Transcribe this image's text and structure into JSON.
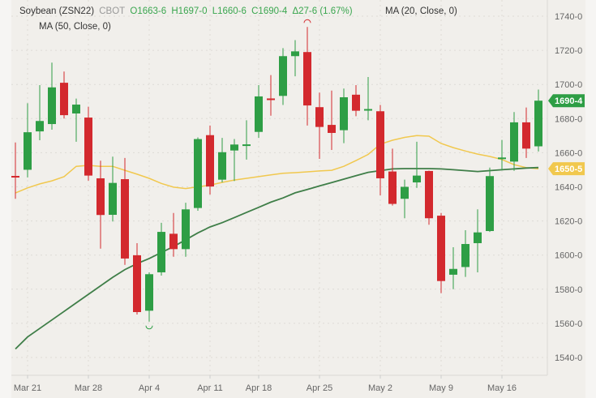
{
  "header": {
    "symbol": "Soybean (ZSN22)",
    "exchange": "CBOT",
    "open": "O1663-6",
    "high": "H1697-0",
    "low": "L1660-6",
    "close": "C1690-4",
    "change": "Δ27-6 (1.67%)",
    "ma20_label": "MA (20, Close, 0)",
    "ma50_label": "MA (50, Close, 0)"
  },
  "colors": {
    "up": "#2e9e45",
    "down": "#d3292e",
    "ma20": "#f1c84e",
    "ma50": "#3f7e48",
    "background": "#f1efeb"
  },
  "chart_data": {
    "type": "candlestick",
    "ylim": [
      1530,
      1750
    ],
    "y_ticks": [
      "1740-0",
      "1720-0",
      "1700-0",
      "1680-0",
      "1660-0",
      "1640-0",
      "1620-0",
      "1600-0",
      "1580-0",
      "1560-0",
      "1540-0"
    ],
    "y_tick_values": [
      1740,
      1720,
      1700,
      1680,
      1660,
      1640,
      1620,
      1600,
      1580,
      1560,
      1540
    ],
    "x_ticks": [
      {
        "label": "Mar 21",
        "date": "Mar 21"
      },
      {
        "label": "Mar 28",
        "date": "Mar 28"
      },
      {
        "label": "Apr 4",
        "date": "Apr 4"
      },
      {
        "label": "Apr 11",
        "date": "Apr 11"
      },
      {
        "label": "Apr 18",
        "date": "Apr 18"
      },
      {
        "label": "Apr 25",
        "date": "Apr 25"
      },
      {
        "label": "May 2",
        "date": "May 2"
      },
      {
        "label": "May 9",
        "date": "May 9"
      },
      {
        "label": "May 16",
        "date": "May 16"
      }
    ],
    "grid": true,
    "price_tags": [
      {
        "label": "1690-4",
        "value": 1690.5,
        "series": "close"
      },
      {
        "label": "1650-5",
        "value": 1650.6,
        "series": "MA (20, Close, 0)"
      }
    ],
    "candles": [
      {
        "date": "Mar 18",
        "o": 1646.4,
        "h": 1666,
        "l": 1633,
        "c": 1646.0
      },
      {
        "date": "Mar 21",
        "o": 1650,
        "h": 1689,
        "l": 1645.5,
        "c": 1672
      },
      {
        "date": "Mar 22",
        "o": 1672.5,
        "h": 1699.6,
        "l": 1667.3,
        "c": 1678.6
      },
      {
        "date": "Mar 23",
        "o": 1676.8,
        "h": 1712.8,
        "l": 1673.5,
        "c": 1698.3
      },
      {
        "date": "Mar 24",
        "o": 1701,
        "h": 1707.6,
        "l": 1680,
        "c": 1682
      },
      {
        "date": "Mar 25",
        "o": 1683,
        "h": 1691.7,
        "l": 1666.4,
        "c": 1688.2
      },
      {
        "date": "Mar 28",
        "o": 1680.6,
        "h": 1687,
        "l": 1643.6,
        "c": 1646.6
      },
      {
        "date": "Mar 29",
        "o": 1645,
        "h": 1655.3,
        "l": 1603.8,
        "c": 1623.5
      },
      {
        "date": "Mar 30",
        "o": 1623.6,
        "h": 1657.7,
        "l": 1619.7,
        "c": 1642.3
      },
      {
        "date": "Mar 31",
        "o": 1644.5,
        "h": 1656.9,
        "l": 1594.3,
        "c": 1598
      },
      {
        "date": "Apr 1",
        "o": 1599.9,
        "h": 1607,
        "l": 1565.2,
        "c": 1566.6
      },
      {
        "date": "Apr 4",
        "o": 1567.4,
        "h": 1589.9,
        "l": 1561,
        "c": 1588.8
      },
      {
        "date": "Apr 5",
        "o": 1589.9,
        "h": 1618.9,
        "l": 1588,
        "c": 1613.6
      },
      {
        "date": "Apr 6",
        "o": 1612.5,
        "h": 1624.7,
        "l": 1599,
        "c": 1603.5
      },
      {
        "date": "Apr 7",
        "o": 1603.5,
        "h": 1630.7,
        "l": 1599,
        "c": 1626.8
      },
      {
        "date": "Apr 8",
        "o": 1627.6,
        "h": 1669,
        "l": 1626,
        "c": 1668
      },
      {
        "date": "Apr 11",
        "o": 1670.3,
        "h": 1675.9,
        "l": 1635.5,
        "c": 1640.2
      },
      {
        "date": "Apr 12",
        "o": 1644.2,
        "h": 1668.7,
        "l": 1642.6,
        "c": 1660.3
      },
      {
        "date": "Apr 13",
        "o": 1661.3,
        "h": 1668,
        "l": 1643.4,
        "c": 1664.8
      },
      {
        "date": "Apr 14",
        "o": 1664.6,
        "h": 1679,
        "l": 1656,
        "c": 1664.9
      },
      {
        "date": "Apr 18",
        "o": 1672.2,
        "h": 1699.6,
        "l": 1668.7,
        "c": 1693
      },
      {
        "date": "Apr 19",
        "o": 1691.8,
        "h": 1705.5,
        "l": 1681.7,
        "c": 1691.6
      },
      {
        "date": "Apr 20",
        "o": 1693.3,
        "h": 1721.3,
        "l": 1688,
        "c": 1716.6
      },
      {
        "date": "Apr 21",
        "o": 1716.6,
        "h": 1726,
        "l": 1704.8,
        "c": 1719.4
      },
      {
        "date": "Apr 22",
        "o": 1719,
        "h": 1733.7,
        "l": 1675.9,
        "c": 1687.7
      },
      {
        "date": "Apr 25",
        "o": 1686.7,
        "h": 1695.2,
        "l": 1656.4,
        "c": 1675.1
      },
      {
        "date": "Apr 26",
        "o": 1676.3,
        "h": 1696.4,
        "l": 1661.6,
        "c": 1671.6
      },
      {
        "date": "Apr 27",
        "o": 1673.2,
        "h": 1697.6,
        "l": 1665.6,
        "c": 1692.5
      },
      {
        "date": "Apr 28",
        "o": 1694,
        "h": 1699.6,
        "l": 1681.4,
        "c": 1684.6
      },
      {
        "date": "Apr 29",
        "o": 1685.2,
        "h": 1704.4,
        "l": 1679,
        "c": 1685.6
      },
      {
        "date": "May 2",
        "o": 1684.3,
        "h": 1688,
        "l": 1635,
        "c": 1645
      },
      {
        "date": "May 3",
        "o": 1649,
        "h": 1662.4,
        "l": 1629,
        "c": 1630
      },
      {
        "date": "May 4",
        "o": 1633,
        "h": 1644.2,
        "l": 1621.6,
        "c": 1640
      },
      {
        "date": "May 5",
        "o": 1642.6,
        "h": 1666.4,
        "l": 1639.4,
        "c": 1646.6
      },
      {
        "date": "May 6",
        "o": 1649.3,
        "h": 1649.5,
        "l": 1617.8,
        "c": 1621.6
      },
      {
        "date": "May 9",
        "o": 1623.1,
        "h": 1624.7,
        "l": 1577.7,
        "c": 1584.8
      },
      {
        "date": "May 10",
        "o": 1588.5,
        "h": 1604.6,
        "l": 1580,
        "c": 1591.9
      },
      {
        "date": "May 11",
        "o": 1593,
        "h": 1614.6,
        "l": 1587.2,
        "c": 1606.5
      },
      {
        "date": "May 12",
        "o": 1607,
        "h": 1626.8,
        "l": 1589.9,
        "c": 1613.3
      },
      {
        "date": "May 13",
        "o": 1614.1,
        "h": 1651.3,
        "l": 1613.6,
        "c": 1646.3
      },
      {
        "date": "May 16",
        "o": 1656.6,
        "h": 1667.5,
        "l": 1649.7,
        "c": 1657.2
      },
      {
        "date": "May 17",
        "o": 1654.8,
        "h": 1683.8,
        "l": 1649.4,
        "c": 1677.8
      },
      {
        "date": "May 18",
        "o": 1677.8,
        "h": 1686.5,
        "l": 1656.9,
        "c": 1662.4
      },
      {
        "date": "May 19",
        "o": 1663.75,
        "h": 1697,
        "l": 1660.75,
        "c": 1690.5
      }
    ],
    "series": [
      {
        "name": "MA (20, Close, 0)",
        "color": "#f1c84e",
        "values": [
          1636.4,
          1639.4,
          1641.7,
          1643.5,
          1646,
          1652,
          1652.6,
          1652,
          1652,
          1649.7,
          1647.4,
          1645,
          1642,
          1639.8,
          1639,
          1640,
          1641,
          1642.6,
          1644,
          1645,
          1646,
          1647,
          1648,
          1648.3,
          1648.8,
          1649.3,
          1649.7,
          1652,
          1655.4,
          1659,
          1665,
          1667.3,
          1669,
          1670,
          1669.7,
          1665.4,
          1663,
          1661,
          1659.2,
          1657.8,
          1656,
          1653,
          1651.2,
          1650.6
        ]
      },
      {
        "name": "MA (50, Close, 0)",
        "color": "#3f7e48",
        "values": [
          1545,
          1552,
          1557,
          1562,
          1567,
          1572,
          1577,
          1582,
          1587,
          1591.5,
          1595,
          1598,
          1601.5,
          1605,
          1609,
          1613,
          1616.5,
          1619,
          1622,
          1625,
          1628,
          1631,
          1633.5,
          1636.5,
          1638.5,
          1640.5,
          1642.5,
          1644.5,
          1646.5,
          1648.5,
          1649.5,
          1650.5,
          1650.7,
          1650.7,
          1650.7,
          1650.5,
          1650,
          1649.5,
          1649,
          1649.5,
          1650,
          1650.5,
          1651,
          1651.3
        ]
      }
    ],
    "markers": [
      {
        "type": "high",
        "date": "Apr 22",
        "value": 1733.7
      },
      {
        "type": "low",
        "date": "Apr 4",
        "value": 1561
      }
    ]
  }
}
